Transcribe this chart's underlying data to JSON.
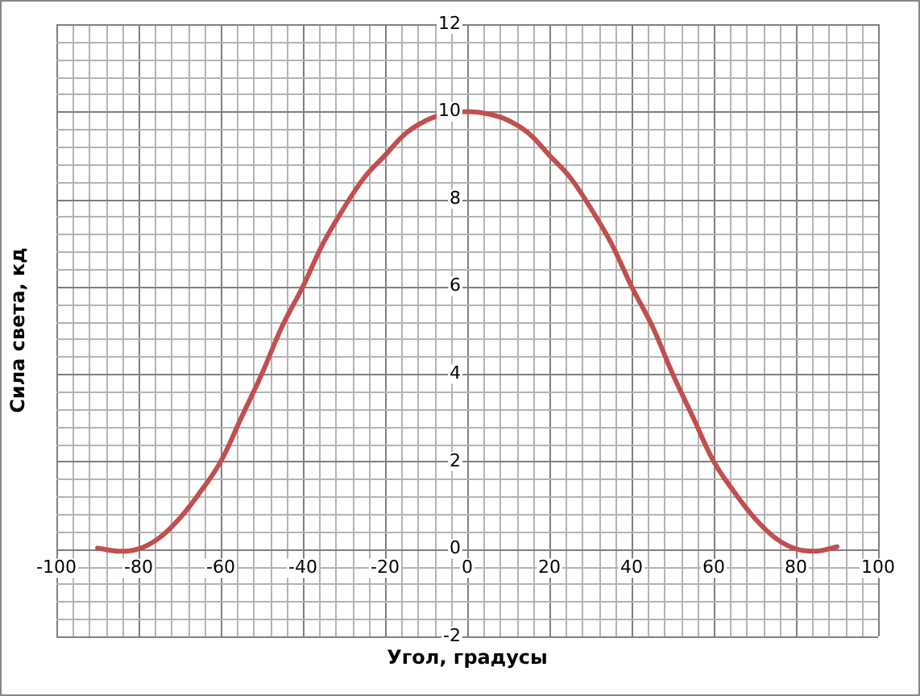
{
  "chart_data": {
    "type": "line",
    "xlabel": "Угол, градусы",
    "ylabel": "Сила света, кд",
    "x": [
      -90,
      -85,
      -80,
      -75,
      -70,
      -65,
      -60,
      -55,
      -50,
      -45,
      -40,
      -35,
      -30,
      -25,
      -20,
      -15,
      -10,
      -5,
      0,
      5,
      10,
      15,
      20,
      25,
      30,
      35,
      40,
      45,
      50,
      55,
      60,
      65,
      70,
      75,
      80,
      85,
      90
    ],
    "series": [
      {
        "color": "#c0504d",
        "values": [
          0.02,
          -0.05,
          0,
          0.25,
          0.7,
          1.3,
          2,
          3,
          4,
          5.1,
          6,
          7,
          7.8,
          8.5,
          9,
          9.5,
          9.8,
          9.95,
          10,
          9.95,
          9.8,
          9.5,
          9,
          8.5,
          7.8,
          7,
          6,
          5.1,
          4,
          3,
          2,
          1.3,
          0.7,
          0.25,
          0,
          -0.05,
          0.05
        ]
      }
    ],
    "xlim": [
      -100,
      100
    ],
    "xticks": [
      -100,
      -80,
      -60,
      -40,
      -20,
      0,
      20,
      40,
      60,
      80,
      100
    ],
    "ylim": [
      -2,
      12
    ],
    "yticks": [
      -2,
      0,
      2,
      4,
      6,
      8,
      10,
      12
    ],
    "grid": true,
    "legend": false,
    "marker": "none",
    "line_style": "solid"
  }
}
